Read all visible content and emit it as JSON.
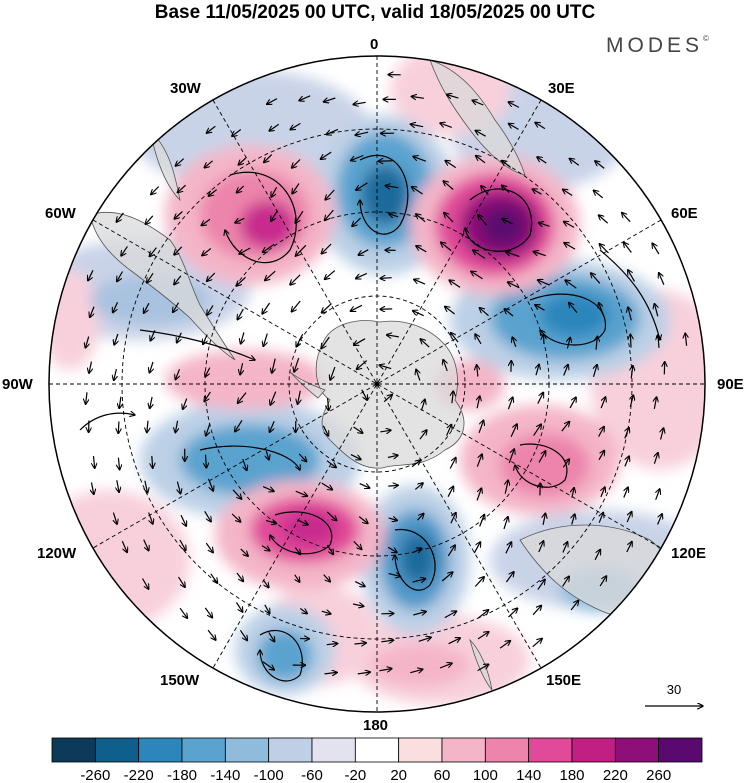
{
  "title": "Base 11/05/2025 00 UTC, valid 18/05/2025 00 UTC",
  "brand": "MODES",
  "brand_mark": "©",
  "longitude_labels": {
    "lon_0": "0",
    "lon_30e": "30E",
    "lon_60e": "60E",
    "lon_90e": "90E",
    "lon_120e": "120E",
    "lon_150e": "150E",
    "lon_180": "180",
    "lon_150w": "150W",
    "lon_120w": "120W",
    "lon_90w": "90W",
    "lon_60w": "60W",
    "lon_30w": "30W"
  },
  "reference_vector": {
    "label": "30"
  },
  "colorbar": {
    "labels": [
      "-260",
      "-220",
      "-180",
      "-140",
      "-100",
      "-60",
      "-20",
      "20",
      "60",
      "100",
      "140",
      "180",
      "220",
      "260"
    ],
    "colors": [
      "#0d3a5a",
      "#0f5f8c",
      "#2a86bb",
      "#5aa3cf",
      "#8fbcdc",
      "#bfd0e6",
      "#e3e3f0",
      "#ffffff",
      "#fbdede",
      "#f4b5c8",
      "#ec84ab",
      "#e04a98",
      "#c21f85",
      "#8e0f78",
      "#5a0a6e"
    ]
  },
  "map_features": {
    "projection": "south-polar-stereographic",
    "shading_colors": {
      "neg_strong": "#1e6a9c",
      "neg_mid": "#4f98c9",
      "neg_weak": "#b7cce4",
      "pos_weak": "#f8d0dc",
      "pos_mid": "#ee8fb6",
      "pos_strong": "#c8298e",
      "pos_max": "#6e1277",
      "land": "#d9d9d9"
    }
  }
}
